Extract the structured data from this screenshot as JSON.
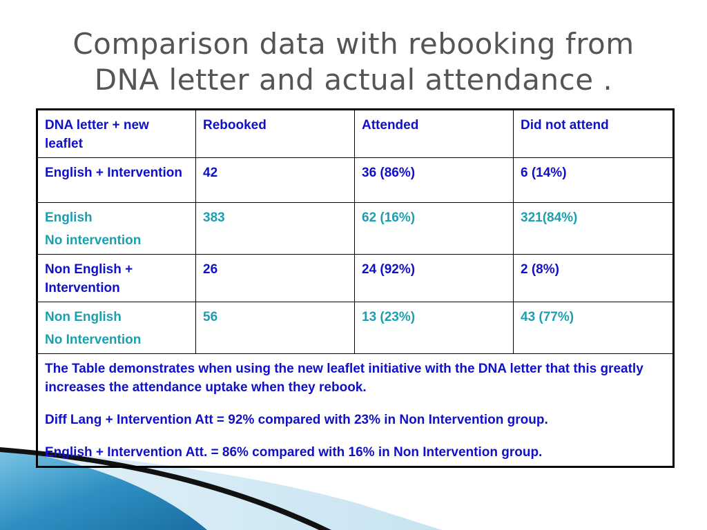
{
  "slide": {
    "title_line1": "Comparison data with rebooking from",
    "title_line2": "DNA letter and actual attendance ."
  },
  "table": {
    "header": {
      "col1": "DNA letter + new leaflet",
      "col2": "Rebooked",
      "col3": "Attended",
      "col4": "Did not attend"
    },
    "rows": [
      {
        "group": "English + Intervention",
        "group_sub": "",
        "rebooked": "42",
        "attended": "36 (86%)",
        "dna": "6 (14%)",
        "color": "#1010c8"
      },
      {
        "group": "English",
        "group_sub": "No intervention",
        "rebooked": "383",
        "attended": "62 (16%)",
        "dna": "321(84%)",
        "color": "#1b9fb0"
      },
      {
        "group": "Non English + Intervention",
        "group_sub": "",
        "rebooked": "26",
        "attended": "24 (92%)",
        "dna": "2 (8%)",
        "color": "#1010c8"
      },
      {
        "group": "Non English",
        "group_sub": "No Intervention",
        "rebooked": "56",
        "attended": "13 (23%)",
        "dna": "43 (77%)",
        "color": "#1b9fb0"
      }
    ],
    "notes": [
      "The Table demonstrates when using the new leaflet initiative with the DNA letter that this greatly increases the attendance uptake when they rebook.",
      "Diff Lang + Intervention Att = 92% compared with  23% in Non Intervention group.",
      "English + Intervention Att. = 86% compared with 16% in Non Intervention group."
    ]
  },
  "colors": {
    "title": "#555555",
    "blue_text": "#1010c8",
    "teal_text": "#1b9fb0",
    "swoosh_blue": "#3a9cc8",
    "swoosh_black": "#111111"
  }
}
